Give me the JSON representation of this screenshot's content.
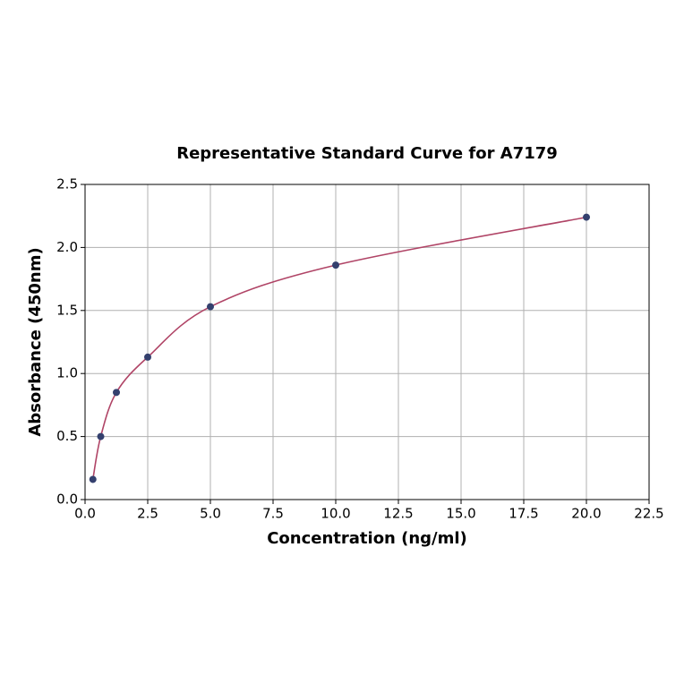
{
  "chart_data": {
    "type": "scatter",
    "title": "Representative Standard Curve for A7179",
    "xlabel": "Concentration (ng/ml)",
    "ylabel": "Absorbance (450nm)",
    "x": [
      0.3125,
      0.625,
      1.25,
      2.5,
      5,
      10,
      20
    ],
    "values": [
      0.16,
      0.5,
      0.85,
      1.13,
      1.53,
      1.86,
      2.24
    ],
    "color": "#34406e",
    "line_color": "#b04466",
    "xlim": [
      0,
      22.5
    ],
    "ylim": [
      0,
      2.5
    ],
    "xticks": [
      {
        "value": 0,
        "label": "0.0"
      },
      2.5,
      {
        "value": 5,
        "label": "5.0"
      },
      7.5,
      {
        "value": 10,
        "label": "10.0"
      },
      12.5,
      {
        "value": 15,
        "label": "15.0"
      },
      17.5,
      {
        "value": 20,
        "label": "20.0"
      },
      22.5
    ],
    "yticks": [
      {
        "value": 0,
        "label": "0.0"
      },
      0.5,
      {
        "value": 1,
        "label": "1.0"
      },
      1.5,
      {
        "value": 2,
        "label": "2.0"
      },
      2.5
    ],
    "grid": true
  }
}
